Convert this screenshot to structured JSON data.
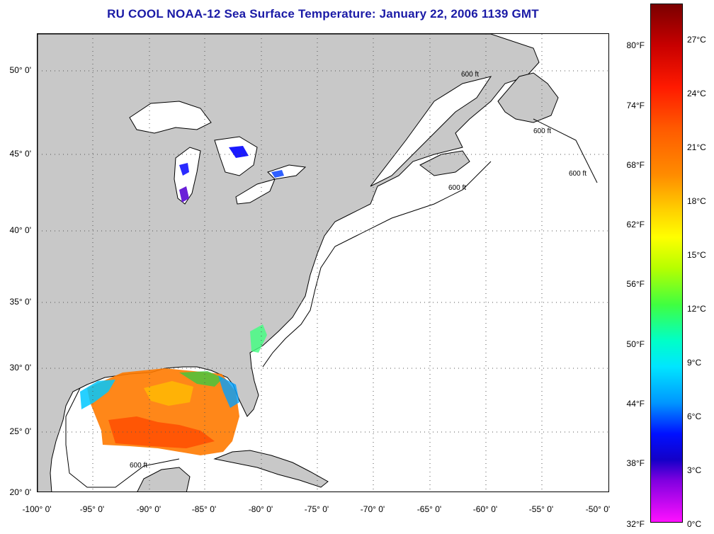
{
  "title": "RU COOL  NOAA-12  Sea Surface Temperature:  January 22, 2006 1139 GMT",
  "map": {
    "land_color": "#c8c8c8",
    "water_color": "#ffffff",
    "contour_label": "600 ft",
    "lat_labels": [
      "50° 0'",
      "45° 0'",
      "40° 0'",
      "35° 0'",
      "30° 0'",
      "25° 0'",
      "20° 0'"
    ],
    "lon_labels": [
      "-100° 0'",
      "-95° 0'",
      "-90° 0'",
      "-85° 0'",
      "-80° 0'",
      "-75° 0'",
      "-70° 0'",
      "-65° 0'",
      "-60° 0'",
      "-55° 0'",
      "-50° 0'"
    ]
  },
  "colorbar": {
    "fahrenheit": [
      "80°F",
      "74°F",
      "68°F",
      "62°F",
      "56°F",
      "50°F",
      "44°F",
      "38°F",
      "32°F"
    ],
    "celsius": [
      "27°C",
      "24°C",
      "21°C",
      "18°C",
      "15°C",
      "12°C",
      "9°C",
      "6°C",
      "3°C",
      "0°C"
    ]
  }
}
